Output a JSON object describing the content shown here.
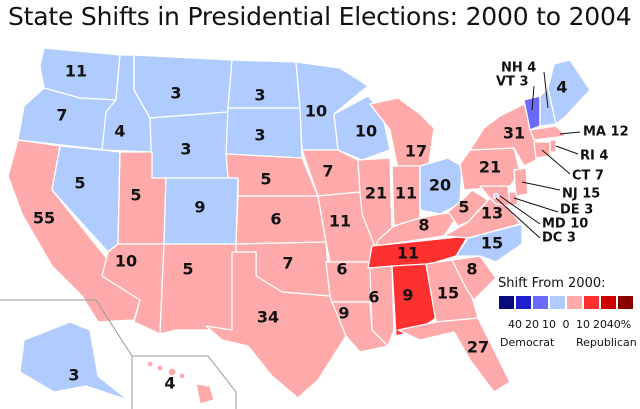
{
  "title": "State Shifts in Presidential Elections: 2000 to 2004",
  "colors": {
    "dem_40": "#0a0a7a",
    "dem_20": "#1f1fd0",
    "dem_10": "#6a6aff",
    "dem_0": "#b0ccff",
    "rep_0": "#ffaaaa",
    "rep_10": "#ff3030",
    "rep_20": "#d00000",
    "rep_40": "#8a0000",
    "border": "#ffffff"
  },
  "states": [
    {
      "abbr": "WA",
      "value": "11",
      "dir": "D",
      "level": 0
    },
    {
      "abbr": "OR",
      "value": "7",
      "dir": "D",
      "level": 0
    },
    {
      "abbr": "CA",
      "value": "55",
      "dir": "R",
      "level": 0
    },
    {
      "abbr": "ID",
      "value": "4",
      "dir": "D",
      "level": 0
    },
    {
      "abbr": "NV",
      "value": "5",
      "dir": "D",
      "level": 0
    },
    {
      "abbr": "MT",
      "value": "3",
      "dir": "D",
      "level": 0
    },
    {
      "abbr": "WY",
      "value": "3",
      "dir": "D",
      "level": 0
    },
    {
      "abbr": "UT",
      "value": "5",
      "dir": "R",
      "level": 0
    },
    {
      "abbr": "AZ",
      "value": "10",
      "dir": "R",
      "level": 0
    },
    {
      "abbr": "CO",
      "value": "9",
      "dir": "D",
      "level": 0
    },
    {
      "abbr": "NM",
      "value": "5",
      "dir": "R",
      "level": 0
    },
    {
      "abbr": "ND",
      "value": "3",
      "dir": "D",
      "level": 0
    },
    {
      "abbr": "SD",
      "value": "3",
      "dir": "D",
      "level": 0
    },
    {
      "abbr": "NE",
      "value": "5",
      "dir": "R",
      "level": 0
    },
    {
      "abbr": "KS",
      "value": "6",
      "dir": "R",
      "level": 0
    },
    {
      "abbr": "OK",
      "value": "7",
      "dir": "R",
      "level": 0
    },
    {
      "abbr": "TX",
      "value": "34",
      "dir": "R",
      "level": 0
    },
    {
      "abbr": "MN",
      "value": "10",
      "dir": "D",
      "level": 0
    },
    {
      "abbr": "IA",
      "value": "7",
      "dir": "R",
      "level": 0
    },
    {
      "abbr": "MO",
      "value": "11",
      "dir": "R",
      "level": 0
    },
    {
      "abbr": "AR",
      "value": "6",
      "dir": "R",
      "level": 0
    },
    {
      "abbr": "LA",
      "value": "9",
      "dir": "R",
      "level": 0
    },
    {
      "abbr": "WI",
      "value": "10",
      "dir": "D",
      "level": 0
    },
    {
      "abbr": "IL",
      "value": "21",
      "dir": "R",
      "level": 0
    },
    {
      "abbr": "MI",
      "value": "17",
      "dir": "R",
      "level": 0
    },
    {
      "abbr": "IN",
      "value": "11",
      "dir": "R",
      "level": 0
    },
    {
      "abbr": "OH",
      "value": "20",
      "dir": "D",
      "level": 0
    },
    {
      "abbr": "KY",
      "value": "8",
      "dir": "R",
      "level": 0
    },
    {
      "abbr": "TN",
      "value": "11",
      "dir": "R",
      "level": 10
    },
    {
      "abbr": "MS",
      "value": "6",
      "dir": "R",
      "level": 0
    },
    {
      "abbr": "AL",
      "value": "9",
      "dir": "R",
      "level": 10
    },
    {
      "abbr": "GA",
      "value": "15",
      "dir": "R",
      "level": 0
    },
    {
      "abbr": "FL",
      "value": "27",
      "dir": "R",
      "level": 0
    },
    {
      "abbr": "SC",
      "value": "8",
      "dir": "R",
      "level": 0
    },
    {
      "abbr": "NC",
      "value": "15",
      "dir": "D",
      "level": 0
    },
    {
      "abbr": "VA",
      "value": "13",
      "dir": "R",
      "level": 0
    },
    {
      "abbr": "WV",
      "value": "5",
      "dir": "R",
      "level": 0
    },
    {
      "abbr": "PA",
      "value": "21",
      "dir": "R",
      "level": 0
    },
    {
      "abbr": "NY",
      "value": "31",
      "dir": "R",
      "level": 0
    },
    {
      "abbr": "VT",
      "value": "3",
      "dir": "D",
      "level": 10
    },
    {
      "abbr": "NH",
      "value": "4",
      "dir": "D",
      "level": 0
    },
    {
      "abbr": "ME",
      "value": "4",
      "dir": "D",
      "level": 0
    },
    {
      "abbr": "MA",
      "value": "12",
      "dir": "R",
      "level": 0
    },
    {
      "abbr": "RI",
      "value": "4",
      "dir": "R",
      "level": 0
    },
    {
      "abbr": "CT",
      "value": "7",
      "dir": "R",
      "level": 0
    },
    {
      "abbr": "NJ",
      "value": "15",
      "dir": "R",
      "level": 0
    },
    {
      "abbr": "DE",
      "value": "3",
      "dir": "R",
      "level": 0
    },
    {
      "abbr": "MD",
      "value": "10",
      "dir": "R",
      "level": 0
    },
    {
      "abbr": "DC",
      "value": "3",
      "dir": "D",
      "level": 0
    },
    {
      "abbr": "AK",
      "value": "3",
      "dir": "D",
      "level": 0
    },
    {
      "abbr": "HI",
      "value": "4",
      "dir": "R",
      "level": 0
    }
  ],
  "callouts": {
    "nh": "NH 4",
    "vt": "VT 3",
    "ma": "MA 12",
    "ri": "RI 4",
    "ct": "CT 7",
    "nj": "NJ 15",
    "de": "DE 3",
    "md": "MD 10",
    "dc": "DC 3"
  },
  "legend": {
    "title": "Shift From 2000:",
    "ticks": [
      "40",
      "20",
      "10",
      "0",
      "10",
      "20",
      "40%"
    ],
    "dem_label": "Democrat",
    "rep_label": "Republican"
  }
}
